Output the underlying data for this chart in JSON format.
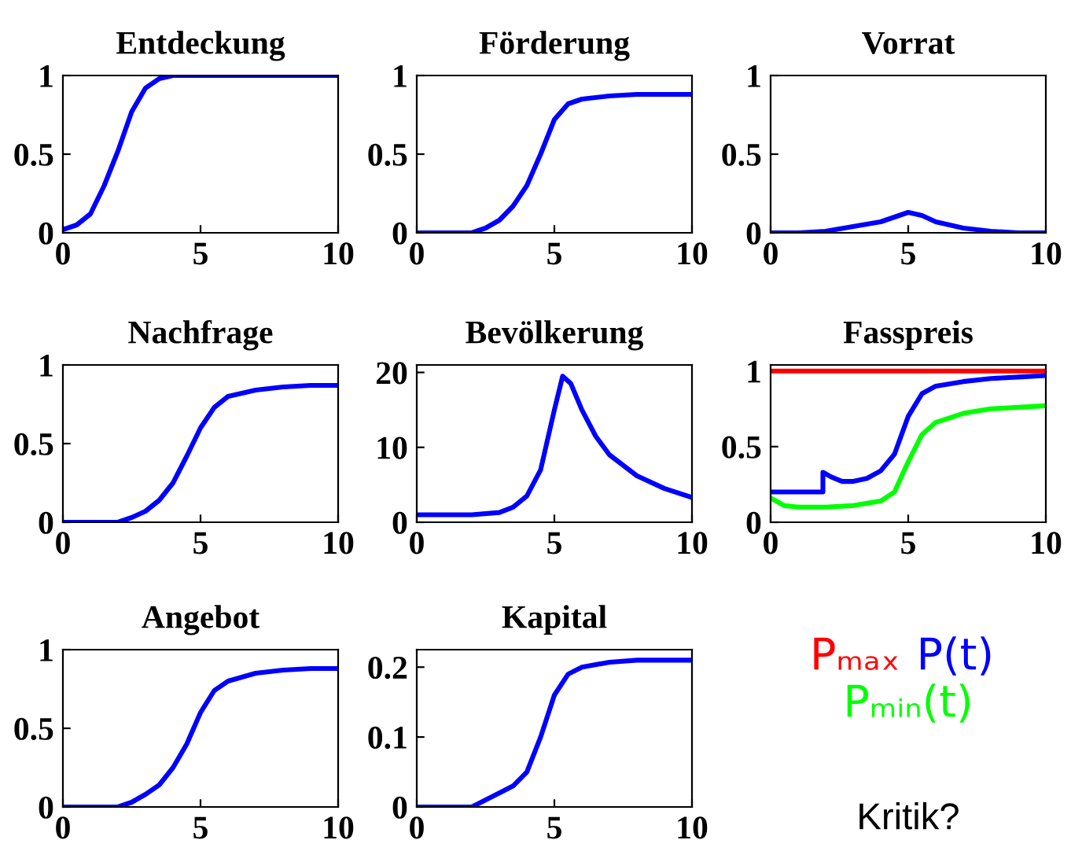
{
  "chart_data": [
    {
      "type": "line",
      "title": "Entdeckung",
      "xlim": [
        0,
        10
      ],
      "xticks": [
        0,
        5,
        10
      ],
      "ylim": [
        0,
        1
      ],
      "yticks": [
        0,
        0.5,
        1
      ],
      "series": [
        {
          "color": "#0000ff",
          "x": [
            0,
            0.5,
            1,
            1.5,
            2,
            2.5,
            3,
            3.5,
            4,
            5,
            6,
            7,
            8,
            9,
            10
          ],
          "values": [
            0.02,
            0.05,
            0.12,
            0.3,
            0.52,
            0.77,
            0.92,
            0.98,
            1,
            1,
            1,
            1,
            1,
            1,
            1
          ]
        }
      ]
    },
    {
      "type": "line",
      "title": "Förderung",
      "xlim": [
        0,
        10
      ],
      "xticks": [
        0,
        5,
        10
      ],
      "ylim": [
        0,
        1
      ],
      "yticks": [
        0,
        0.5,
        1
      ],
      "series": [
        {
          "color": "#0000ff",
          "x": [
            0,
            1,
            2,
            2.5,
            3,
            3.5,
            4,
            4.5,
            5,
            5.5,
            6,
            7,
            8,
            9,
            10
          ],
          "values": [
            0,
            0,
            0,
            0.03,
            0.08,
            0.17,
            0.3,
            0.5,
            0.72,
            0.82,
            0.85,
            0.87,
            0.88,
            0.88,
            0.88
          ]
        }
      ]
    },
    {
      "type": "line",
      "title": "Vorrat",
      "xlim": [
        0,
        10
      ],
      "xticks": [
        0,
        5,
        10
      ],
      "ylim": [
        0,
        1
      ],
      "yticks": [
        0,
        0.5,
        1
      ],
      "series": [
        {
          "color": "#0000ff",
          "x": [
            0,
            1,
            2,
            3,
            4,
            4.5,
            5,
            5.5,
            6,
            7,
            8,
            9,
            10
          ],
          "values": [
            0,
            0,
            0.01,
            0.04,
            0.07,
            0.1,
            0.13,
            0.11,
            0.07,
            0.03,
            0.01,
            0,
            0
          ]
        }
      ]
    },
    {
      "type": "line",
      "title": "Nachfrage",
      "xlim": [
        0,
        10
      ],
      "xticks": [
        0,
        5,
        10
      ],
      "ylim": [
        0,
        1
      ],
      "yticks": [
        0,
        0.5,
        1
      ],
      "series": [
        {
          "color": "#0000ff",
          "x": [
            0,
            1,
            2,
            2.5,
            3,
            3.5,
            4,
            4.5,
            5,
            5.5,
            6,
            7,
            8,
            9,
            10
          ],
          "values": [
            0,
            0,
            0,
            0.03,
            0.07,
            0.14,
            0.25,
            0.42,
            0.6,
            0.73,
            0.8,
            0.84,
            0.86,
            0.87,
            0.87
          ]
        }
      ]
    },
    {
      "type": "line",
      "title": "Bevölkerung",
      "xlim": [
        0,
        10
      ],
      "xticks": [
        0,
        5,
        10
      ],
      "ylim": [
        0,
        21
      ],
      "yticks": [
        0,
        10,
        20
      ],
      "series": [
        {
          "color": "#0000ff",
          "x": [
            0,
            1,
            2,
            3,
            3.5,
            4,
            4.5,
            5,
            5.3,
            5.6,
            6,
            6.5,
            7,
            8,
            9,
            10
          ],
          "values": [
            1,
            1,
            1,
            1.3,
            2,
            3.5,
            7,
            15,
            19.5,
            18.5,
            15,
            11.5,
            9,
            6.2,
            4.5,
            3.3
          ]
        }
      ]
    },
    {
      "type": "line",
      "title": "Fasspreis",
      "xlim": [
        0,
        10
      ],
      "xticks": [
        0,
        5,
        10
      ],
      "ylim": [
        0,
        1.04
      ],
      "yticks": [
        0,
        0.5,
        1
      ],
      "series": [
        {
          "name": "Pₘₐₓ",
          "color": "#ff0000",
          "x": [
            0,
            10
          ],
          "values": [
            1,
            1
          ]
        },
        {
          "name": "P(t)",
          "color": "#0000ff",
          "x": [
            0,
            1.9,
            1.9,
            2.2,
            2.6,
            3,
            3.5,
            4,
            4.5,
            5,
            5.5,
            6,
            7,
            8,
            9,
            10
          ],
          "values": [
            0.2,
            0.2,
            0.33,
            0.3,
            0.27,
            0.27,
            0.29,
            0.34,
            0.45,
            0.7,
            0.85,
            0.9,
            0.93,
            0.95,
            0.96,
            0.97
          ]
        },
        {
          "name": "Pₘᵢₙ(t)",
          "color": "#00ff00",
          "x": [
            0,
            0.5,
            1,
            2,
            3,
            4,
            4.5,
            5,
            5.5,
            6,
            7,
            8,
            9,
            10
          ],
          "values": [
            0.16,
            0.11,
            0.1,
            0.1,
            0.11,
            0.14,
            0.2,
            0.4,
            0.58,
            0.66,
            0.72,
            0.75,
            0.76,
            0.77
          ]
        }
      ]
    },
    {
      "type": "line",
      "title": "Angebot",
      "xlim": [
        0,
        10
      ],
      "xticks": [
        0,
        5,
        10
      ],
      "ylim": [
        0,
        1
      ],
      "yticks": [
        0,
        0.5,
        1
      ],
      "series": [
        {
          "color": "#0000ff",
          "x": [
            0,
            1,
            2,
            2.5,
            3,
            3.5,
            4,
            4.5,
            5,
            5.5,
            6,
            7,
            8,
            9,
            10
          ],
          "values": [
            0,
            0,
            0,
            0.03,
            0.08,
            0.14,
            0.25,
            0.4,
            0.6,
            0.74,
            0.8,
            0.85,
            0.87,
            0.88,
            0.88
          ]
        }
      ]
    },
    {
      "type": "line",
      "title": "Kapital",
      "xlim": [
        0,
        10
      ],
      "xticks": [
        0,
        5,
        10
      ],
      "ylim": [
        0,
        0.225
      ],
      "yticks": [
        0,
        0.1,
        0.2
      ],
      "series": [
        {
          "color": "#0000ff",
          "x": [
            0,
            1,
            2,
            3,
            3.5,
            4,
            4.5,
            5,
            5.5,
            6,
            7,
            8,
            9,
            10
          ],
          "values": [
            0,
            0,
            0,
            0.02,
            0.03,
            0.05,
            0.1,
            0.16,
            0.19,
            0.2,
            0.207,
            0.21,
            0.21,
            0.21
          ]
        }
      ]
    },
    {
      "type": "other",
      "annotations": [
        "Kritik?"
      ]
    }
  ]
}
